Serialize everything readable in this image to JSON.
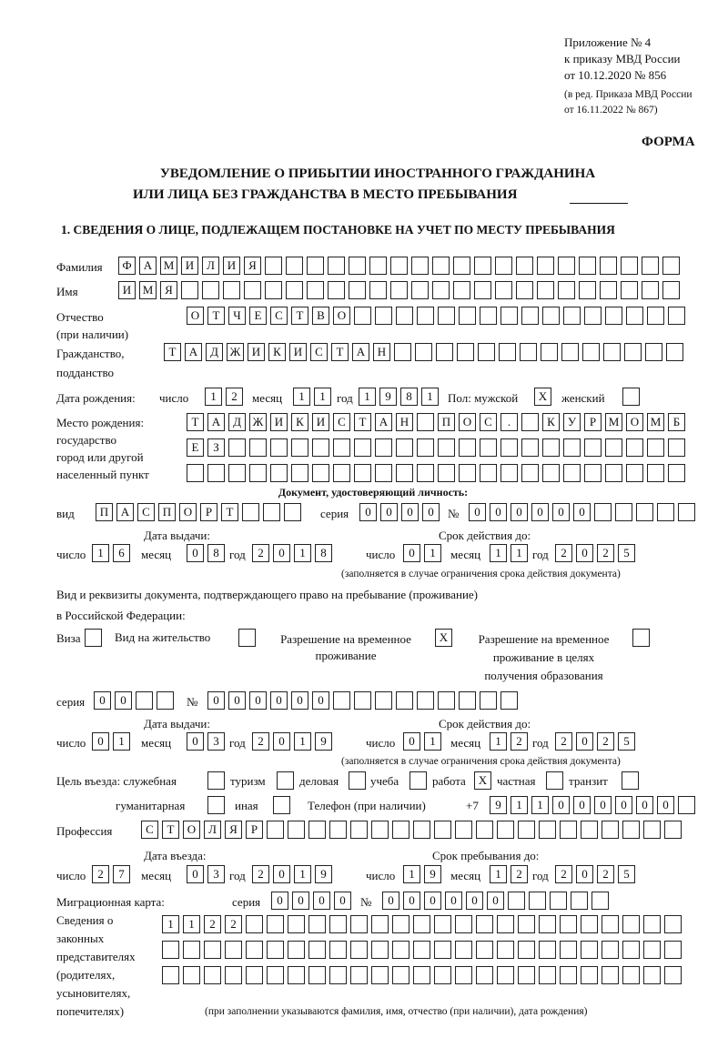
{
  "header": {
    "appendix": [
      "Приложение № 4",
      "к приказу МВД России",
      "от 10.12.2020 № 856"
    ],
    "revision": [
      "(в ред. Приказа МВД России",
      "от 16.11.2022 № 867)"
    ],
    "form_label": "ФОРМА",
    "title": [
      "УВЕДОМЛЕНИЕ О ПРИБЫТИИ ИНОСТРАННОГО ГРАЖДАНИНА",
      "ИЛИ ЛИЦА БЕЗ ГРАЖДАНСТВА В МЕСТО ПРЕБЫВАНИЯ"
    ],
    "section": "1. СВЕДЕНИЯ О ЛИЦЕ, ПОДЛЕЖАЩЕМ ПОСТАНОВКЕ НА УЧЕТ ПО МЕСТУ ПРЕБЫВАНИЯ"
  },
  "labels": {
    "surname": "Фамилия",
    "name": "Имя",
    "patronymic": [
      "Отчество",
      "(при наличии)"
    ],
    "citizenship": [
      "Гражданство,",
      "подданство"
    ],
    "dob": "Дата рождения:",
    "day": "число",
    "month": "месяц",
    "year": "год",
    "sex": "Пол: мужской",
    "female": "женский",
    "birthplace": [
      "Место рождения:",
      "государство",
      "город или другой",
      "населенный пункт"
    ],
    "id_doc": "Документ, удостоверяющий личность:",
    "kind": "вид",
    "series": "серия",
    "number": "№",
    "issue_date": "Дата выдачи:",
    "valid_until": "Срок действия до:",
    "validity_note": "(заполняется в случае ограничения срока действия документа)",
    "stay_doc": [
      "Вид и реквизиты документа, подтверждающего право на пребывание (проживание)",
      "в Российской Федерации:"
    ],
    "visa": "Виза",
    "residence_permit": "Вид на жительство",
    "temp_residence": [
      "Разрешение на временное",
      "проживание"
    ],
    "temp_residence_edu": [
      "Разрешение на временное",
      "проживание в целях",
      "получения образования"
    ],
    "purpose": "Цель въезда: служебная",
    "tourism": "туризм",
    "business": "деловая",
    "study": "учеба",
    "work": "работа",
    "private": "частная",
    "transit": "транзит",
    "humanitarian": "гуманитарная",
    "other": "иная",
    "phone": "Телефон (при наличии)",
    "phone_prefix": "+7",
    "profession": "Профессия",
    "entry_date": "Дата въезда:",
    "stay_until": "Срок пребывания до:",
    "migration_card": "Миграционная карта:",
    "representatives": [
      "Сведения о",
      "законных",
      "представителях",
      "(родителях,",
      "усыновителях,",
      "попечителях)"
    ],
    "representatives_note": "(при заполнении указываются фамилия, имя, отчество (при наличии), дата рождения)"
  },
  "values": {
    "surname": "ФАМИЛИЯ",
    "name": "ИМЯ",
    "patronymic": "ОТЧЕСТВО",
    "citizenship": "ТАДЖИКИСТАН",
    "dob_day": "12",
    "dob_month": "11",
    "dob_year": "1981",
    "male": "X",
    "female": "",
    "birthplace": [
      "ТАДЖИКИСТАН ПОС. КУРМОМБ",
      "ЕЗ",
      ""
    ],
    "doc_kind": "ПАСПОРТ",
    "doc_series": "0000",
    "doc_number": "000000",
    "doc_issue": {
      "day": "16",
      "month": "08",
      "year": "2018"
    },
    "doc_valid": {
      "day": "01",
      "month": "11",
      "year": "2025"
    },
    "visa": "",
    "residence_permit": "",
    "temp_residence": "X",
    "temp_residence_edu": "",
    "stay_series": "00",
    "stay_number": "000000",
    "stay_issue": {
      "day": "01",
      "month": "03",
      "year": "2019"
    },
    "stay_valid": {
      "day": "01",
      "month": "12",
      "year": "2025"
    },
    "purpose": {
      "official": "",
      "tourism": "",
      "business": "",
      "study": "",
      "work": "X",
      "private": "",
      "transit": "",
      "humanitarian": "",
      "other": ""
    },
    "phone": "911000000",
    "profession": "СТОЛЯР",
    "entry": {
      "day": "27",
      "month": "03",
      "year": "2019"
    },
    "stay_until": {
      "day": "19",
      "month": "12",
      "year": "2025"
    },
    "mig_series": "0000",
    "mig_number": "000000",
    "representatives": [
      "1122",
      "",
      ""
    ]
  }
}
